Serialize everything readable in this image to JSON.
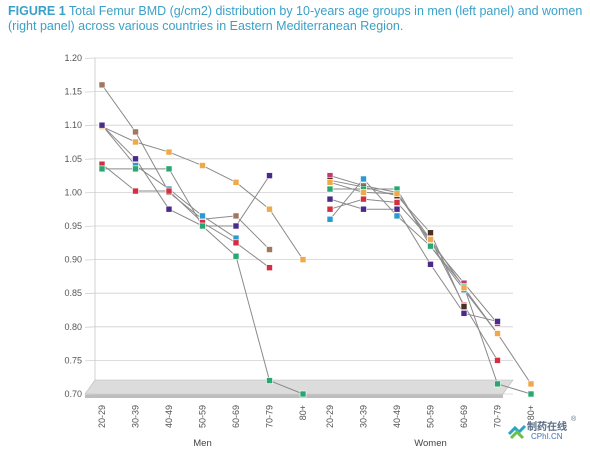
{
  "figure": {
    "lead": "FIGURE 1",
    "text": " Total Femur BMD (g/cm2) distribution by 10-years age groups in men (left panel) and women (right panel) across various countries in Eastern Mediterranean Region."
  },
  "watermark": {
    "cn": "制药在线",
    "en": "CPhI.CN",
    "mark": "®"
  },
  "chart_data": {
    "type": "line",
    "title": "Total Femur BMD (g/cm2) distribution by 10-years age groups in men (left panel) and women (right panel) across various countries in Eastern Mediterranean Region.",
    "xlabel": "",
    "ylabel": "",
    "ylim": [
      0.7,
      1.2
    ],
    "yticks": [
      "1.20",
      "1.15",
      "1.10",
      "1.05",
      "1.00",
      "0.95",
      "0.90",
      "0.85",
      "0.80",
      "0.75",
      "0.70"
    ],
    "grid": true,
    "legend": "none",
    "groups": [
      "Men",
      "Women"
    ],
    "categories": [
      "20-29",
      "30-39",
      "40-49",
      "50-59",
      "60-69",
      "70-79",
      "80+"
    ],
    "panels": [
      {
        "group": "Men",
        "series": [
          {
            "color": "#a07860",
            "values": [
              1.16,
              1.09,
              1.0,
              0.96,
              0.965,
              0.915,
              null
            ]
          },
          {
            "color": "#f0a848",
            "values": [
              1.098,
              1.075,
              1.06,
              1.04,
              1.015,
              0.975,
              0.9
            ]
          },
          {
            "color": "#2a9bd0",
            "values": [
              1.1,
              1.04,
              1.005,
              0.965,
              0.932,
              null,
              null
            ]
          },
          {
            "color": "#4a2a8a",
            "values": [
              1.1,
              1.05,
              0.975,
              0.95,
              0.95,
              1.025,
              null
            ]
          },
          {
            "color": "#d23040",
            "values": [
              1.042,
              1.002,
              1.002,
              0.955,
              0.925,
              0.888,
              null
            ]
          },
          {
            "color": "#28a870",
            "values": [
              1.035,
              1.035,
              1.035,
              0.95,
              0.905,
              0.72,
              0.7
            ]
          }
        ]
      },
      {
        "group": "Women",
        "series": [
          {
            "color": "#c43870",
            "values": [
              1.025,
              1.01,
              1.0,
              0.925,
              0.865,
              0.805,
              null
            ]
          },
          {
            "color": "#2a9bd0",
            "values": [
              0.96,
              1.02,
              0.965,
              0.92,
              0.855,
              0.79,
              null
            ]
          },
          {
            "color": "#4a2a8a",
            "values": [
              0.99,
              0.975,
              0.975,
              0.893,
              0.82,
              0.808,
              null
            ]
          },
          {
            "color": "#d23040",
            "values": [
              0.975,
              0.99,
              0.985,
              0.93,
              0.832,
              0.75,
              null
            ]
          },
          {
            "color": "#4a3020",
            "values": [
              1.018,
              1.008,
              0.995,
              0.94,
              0.83,
              null,
              null
            ]
          },
          {
            "color": "#28a870",
            "values": [
              1.005,
              1.005,
              1.005,
              0.92,
              0.86,
              0.715,
              0.7
            ]
          },
          {
            "color": "#f0a848",
            "values": [
              1.015,
              1.0,
              0.998,
              0.93,
              0.858,
              0.79,
              0.715
            ]
          }
        ]
      }
    ]
  }
}
